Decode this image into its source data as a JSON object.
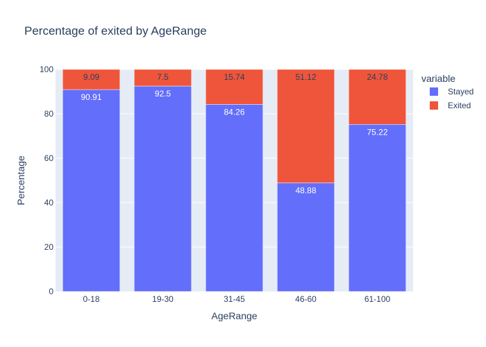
{
  "chart_data": {
    "type": "bar",
    "stacked": true,
    "title": "Percentage of exited by AgeRange",
    "xlabel": "AgeRange",
    "ylabel": "Percentage",
    "ylim": [
      0,
      100
    ],
    "yticks": [
      0,
      20,
      40,
      60,
      80,
      100
    ],
    "categories": [
      "0-18",
      "19-30",
      "31-45",
      "46-60",
      "61-100"
    ],
    "legend": {
      "title": "variable",
      "placement": "right"
    },
    "series": [
      {
        "name": "Stayed",
        "color": "#636efa",
        "label_color": "#ffffff",
        "values": [
          90.91,
          92.5,
          84.26,
          48.88,
          75.22
        ]
      },
      {
        "name": "Exited",
        "color": "#ef553b",
        "label_color": "#2a3f5f",
        "values": [
          9.09,
          7.5,
          15.74,
          51.12,
          24.78
        ]
      }
    ],
    "plot_background": "#e5ecf6",
    "grid": true
  }
}
